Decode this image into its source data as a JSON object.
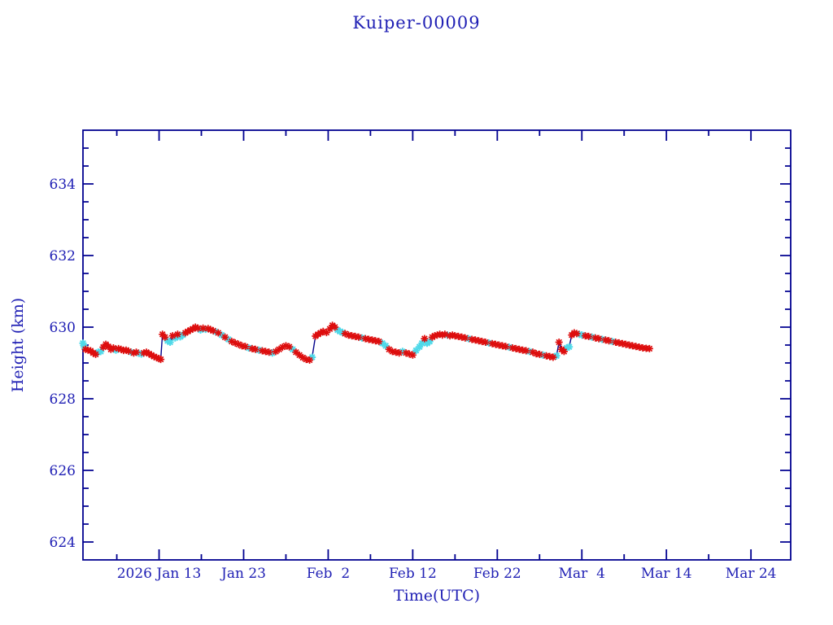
{
  "chart_data": {
    "type": "line",
    "title": "Kuiper-00009",
    "xlabel": "Time(UTC)",
    "ylabel": "Height (km)",
    "x_unit": "day of year 2026 (decimal days, UTC)",
    "xlim": [
      4.0,
      87.7
    ],
    "ylim": [
      623.5,
      635.5
    ],
    "grid": false,
    "legend": "none",
    "x_ticks_major": [
      {
        "pos": 13,
        "label": "2026 Jan 13"
      },
      {
        "pos": 23,
        "label": "Jan 23"
      },
      {
        "pos": 33,
        "label": "Feb  2"
      },
      {
        "pos": 43,
        "label": "Feb 12"
      },
      {
        "pos": 53,
        "label": "Feb 22"
      },
      {
        "pos": 63,
        "label": "Mar  4"
      },
      {
        "pos": 73,
        "label": "Mar 14"
      },
      {
        "pos": 83,
        "label": "Mar 24"
      }
    ],
    "x_ticks_minor": [
      8,
      18,
      28,
      38,
      48,
      58,
      68,
      78
    ],
    "y_ticks_major": [
      624,
      626,
      628,
      630,
      632,
      634
    ],
    "y_minor_step": 0.5,
    "colors": {
      "axis": "#000090",
      "text": "#1f1fb4",
      "line": "#00008b",
      "marker_red": "#dd0d0d",
      "marker_cyan": "#4fd9e9",
      "background": "#ffffff"
    },
    "series_note": "single height time-series; points flagged r=red asterisk, c=cyan asterisk, joined by dark blue line",
    "points": [
      [
        4.0,
        629.55,
        "c"
      ],
      [
        4.15,
        629.45,
        "c"
      ],
      [
        4.3,
        629.38,
        "r"
      ],
      [
        4.6,
        629.36,
        "r"
      ],
      [
        4.9,
        629.34,
        "r"
      ],
      [
        5.2,
        629.28,
        "r"
      ],
      [
        5.5,
        629.24,
        "r"
      ],
      [
        5.8,
        629.3,
        "c"
      ],
      [
        6.1,
        629.32,
        "c"
      ],
      [
        6.4,
        629.44,
        "r"
      ],
      [
        6.7,
        629.52,
        "r"
      ],
      [
        7.0,
        629.46,
        "r"
      ],
      [
        7.3,
        629.38,
        "r"
      ],
      [
        7.6,
        629.42,
        "r"
      ],
      [
        7.9,
        629.36,
        "c"
      ],
      [
        8.2,
        629.4,
        "r"
      ],
      [
        8.5,
        629.38,
        "r"
      ],
      [
        8.8,
        629.35,
        "r"
      ],
      [
        9.1,
        629.36,
        "r"
      ],
      [
        9.4,
        629.33,
        "r"
      ],
      [
        9.7,
        629.3,
        "c"
      ],
      [
        10.0,
        629.28,
        "r"
      ],
      [
        10.3,
        629.3,
        "r"
      ],
      [
        10.6,
        629.27,
        "c"
      ],
      [
        10.9,
        629.25,
        "c"
      ],
      [
        11.2,
        629.28,
        "r"
      ],
      [
        11.5,
        629.3,
        "r"
      ],
      [
        11.8,
        629.26,
        "r"
      ],
      [
        12.1,
        629.22,
        "r"
      ],
      [
        12.4,
        629.18,
        "r"
      ],
      [
        12.7,
        629.15,
        "r"
      ],
      [
        13.0,
        629.12,
        "r"
      ],
      [
        13.2,
        629.1,
        "r"
      ],
      [
        13.4,
        629.8,
        "r"
      ],
      [
        13.7,
        629.72,
        "r"
      ],
      [
        14.0,
        629.62,
        "c"
      ],
      [
        14.3,
        629.58,
        "c"
      ],
      [
        14.6,
        629.76,
        "r"
      ],
      [
        14.9,
        629.7,
        "c"
      ],
      [
        15.2,
        629.8,
        "r"
      ],
      [
        15.5,
        629.73,
        "c"
      ],
      [
        15.8,
        629.78,
        "c"
      ],
      [
        16.1,
        629.84,
        "r"
      ],
      [
        16.4,
        629.88,
        "r"
      ],
      [
        16.7,
        629.92,
        "r"
      ],
      [
        17.0,
        629.95,
        "r"
      ],
      [
        17.3,
        630.0,
        "r"
      ],
      [
        17.6,
        629.97,
        "r"
      ],
      [
        17.9,
        629.92,
        "c"
      ],
      [
        18.2,
        629.97,
        "r"
      ],
      [
        18.5,
        629.94,
        "c"
      ],
      [
        18.8,
        629.96,
        "r"
      ],
      [
        19.1,
        629.93,
        "r"
      ],
      [
        19.4,
        629.9,
        "r"
      ],
      [
        19.7,
        629.87,
        "c"
      ],
      [
        20.0,
        629.84,
        "r"
      ],
      [
        20.4,
        629.78,
        "c"
      ],
      [
        20.8,
        629.72,
        "r"
      ],
      [
        21.2,
        629.66,
        "c"
      ],
      [
        21.6,
        629.6,
        "r"
      ],
      [
        22.0,
        629.56,
        "r"
      ],
      [
        22.4,
        629.52,
        "r"
      ],
      [
        22.8,
        629.48,
        "r"
      ],
      [
        23.2,
        629.46,
        "r"
      ],
      [
        23.6,
        629.42,
        "c"
      ],
      [
        24.0,
        629.4,
        "r"
      ],
      [
        24.4,
        629.38,
        "r"
      ],
      [
        24.8,
        629.36,
        "c"
      ],
      [
        25.2,
        629.34,
        "r"
      ],
      [
        25.6,
        629.32,
        "r"
      ],
      [
        26.0,
        629.3,
        "r"
      ],
      [
        26.4,
        629.28,
        "c"
      ],
      [
        26.8,
        629.32,
        "r"
      ],
      [
        27.2,
        629.38,
        "r"
      ],
      [
        27.6,
        629.44,
        "r"
      ],
      [
        28.0,
        629.48,
        "r"
      ],
      [
        28.4,
        629.45,
        "r"
      ],
      [
        28.8,
        629.38,
        "c"
      ],
      [
        29.2,
        629.3,
        "r"
      ],
      [
        29.6,
        629.22,
        "r"
      ],
      [
        30.0,
        629.15,
        "r"
      ],
      [
        30.4,
        629.1,
        "r"
      ],
      [
        30.8,
        629.08,
        "r"
      ],
      [
        31.1,
        629.16,
        "c"
      ],
      [
        31.5,
        629.75,
        "r"
      ],
      [
        31.8,
        629.8,
        "r"
      ],
      [
        32.1,
        629.84,
        "r"
      ],
      [
        32.4,
        629.88,
        "r"
      ],
      [
        32.8,
        629.85,
        "r"
      ],
      [
        33.2,
        629.95,
        "r"
      ],
      [
        33.5,
        630.05,
        "r"
      ],
      [
        33.8,
        630.0,
        "r"
      ],
      [
        34.1,
        629.92,
        "c"
      ],
      [
        34.4,
        629.88,
        "c"
      ],
      [
        34.7,
        629.85,
        "c"
      ],
      [
        35.0,
        629.82,
        "r"
      ],
      [
        35.4,
        629.78,
        "r"
      ],
      [
        35.8,
        629.76,
        "r"
      ],
      [
        36.2,
        629.74,
        "r"
      ],
      [
        36.6,
        629.72,
        "r"
      ],
      [
        37.0,
        629.7,
        "c"
      ],
      [
        37.4,
        629.68,
        "r"
      ],
      [
        37.8,
        629.66,
        "r"
      ],
      [
        38.2,
        629.64,
        "r"
      ],
      [
        38.6,
        629.62,
        "r"
      ],
      [
        39.0,
        629.6,
        "r"
      ],
      [
        39.4,
        629.55,
        "c"
      ],
      [
        39.8,
        629.48,
        "c"
      ],
      [
        40.2,
        629.38,
        "r"
      ],
      [
        40.6,
        629.32,
        "r"
      ],
      [
        41.0,
        629.3,
        "r"
      ],
      [
        41.4,
        629.28,
        "r"
      ],
      [
        41.8,
        629.32,
        "c"
      ],
      [
        42.2,
        629.28,
        "r"
      ],
      [
        42.6,
        629.25,
        "r"
      ],
      [
        43.0,
        629.22,
        "r"
      ],
      [
        43.4,
        629.35,
        "c"
      ],
      [
        43.8,
        629.45,
        "c"
      ],
      [
        44.1,
        629.55,
        "c"
      ],
      [
        44.4,
        629.68,
        "r"
      ],
      [
        44.7,
        629.55,
        "c"
      ],
      [
        45.0,
        629.6,
        "c"
      ],
      [
        45.3,
        629.72,
        "r"
      ],
      [
        45.6,
        629.76,
        "r"
      ],
      [
        45.9,
        629.78,
        "r"
      ],
      [
        46.2,
        629.8,
        "r"
      ],
      [
        46.5,
        629.78,
        "r"
      ],
      [
        46.8,
        629.8,
        "r"
      ],
      [
        47.1,
        629.78,
        "c"
      ],
      [
        47.4,
        629.76,
        "r"
      ],
      [
        47.7,
        629.78,
        "r"
      ],
      [
        48.0,
        629.76,
        "r"
      ],
      [
        48.4,
        629.74,
        "r"
      ],
      [
        48.8,
        629.72,
        "r"
      ],
      [
        49.2,
        629.7,
        "r"
      ],
      [
        49.6,
        629.68,
        "c"
      ],
      [
        50.0,
        629.66,
        "r"
      ],
      [
        50.4,
        629.64,
        "r"
      ],
      [
        50.8,
        629.62,
        "r"
      ],
      [
        51.2,
        629.6,
        "r"
      ],
      [
        51.6,
        629.58,
        "r"
      ],
      [
        52.0,
        629.56,
        "c"
      ],
      [
        52.4,
        629.54,
        "r"
      ],
      [
        52.8,
        629.52,
        "r"
      ],
      [
        53.2,
        629.5,
        "r"
      ],
      [
        53.6,
        629.48,
        "r"
      ],
      [
        54.0,
        629.46,
        "r"
      ],
      [
        54.4,
        629.44,
        "c"
      ],
      [
        54.8,
        629.42,
        "r"
      ],
      [
        55.2,
        629.4,
        "r"
      ],
      [
        55.6,
        629.38,
        "r"
      ],
      [
        56.0,
        629.36,
        "r"
      ],
      [
        56.4,
        629.34,
        "r"
      ],
      [
        56.8,
        629.32,
        "c"
      ],
      [
        57.2,
        629.3,
        "r"
      ],
      [
        57.6,
        629.26,
        "r"
      ],
      [
        58.0,
        629.24,
        "r"
      ],
      [
        58.4,
        629.22,
        "c"
      ],
      [
        58.8,
        629.2,
        "r"
      ],
      [
        59.2,
        629.18,
        "r"
      ],
      [
        59.6,
        629.16,
        "r"
      ],
      [
        60.0,
        629.2,
        "c"
      ],
      [
        60.3,
        629.58,
        "r"
      ],
      [
        60.6,
        629.38,
        "r"
      ],
      [
        60.9,
        629.32,
        "r"
      ],
      [
        61.2,
        629.42,
        "c"
      ],
      [
        61.5,
        629.45,
        "c"
      ],
      [
        61.8,
        629.78,
        "r"
      ],
      [
        62.1,
        629.84,
        "r"
      ],
      [
        62.4,
        629.82,
        "r"
      ],
      [
        62.7,
        629.8,
        "c"
      ],
      [
        63.0,
        629.78,
        "c"
      ],
      [
        63.4,
        629.76,
        "r"
      ],
      [
        63.8,
        629.74,
        "r"
      ],
      [
        64.2,
        629.72,
        "c"
      ],
      [
        64.6,
        629.7,
        "r"
      ],
      [
        65.0,
        629.68,
        "r"
      ],
      [
        65.4,
        629.66,
        "c"
      ],
      [
        65.8,
        629.64,
        "r"
      ],
      [
        66.2,
        629.62,
        "r"
      ],
      [
        66.6,
        629.6,
        "c"
      ],
      [
        67.0,
        629.58,
        "r"
      ],
      [
        67.4,
        629.56,
        "r"
      ],
      [
        67.8,
        629.54,
        "r"
      ],
      [
        68.2,
        629.52,
        "r"
      ],
      [
        68.6,
        629.5,
        "r"
      ],
      [
        69.0,
        629.48,
        "r"
      ],
      [
        69.4,
        629.46,
        "r"
      ],
      [
        69.8,
        629.44,
        "r"
      ],
      [
        70.2,
        629.42,
        "r"
      ],
      [
        70.6,
        629.41,
        "r"
      ],
      [
        71.0,
        629.4,
        "r"
      ]
    ]
  }
}
